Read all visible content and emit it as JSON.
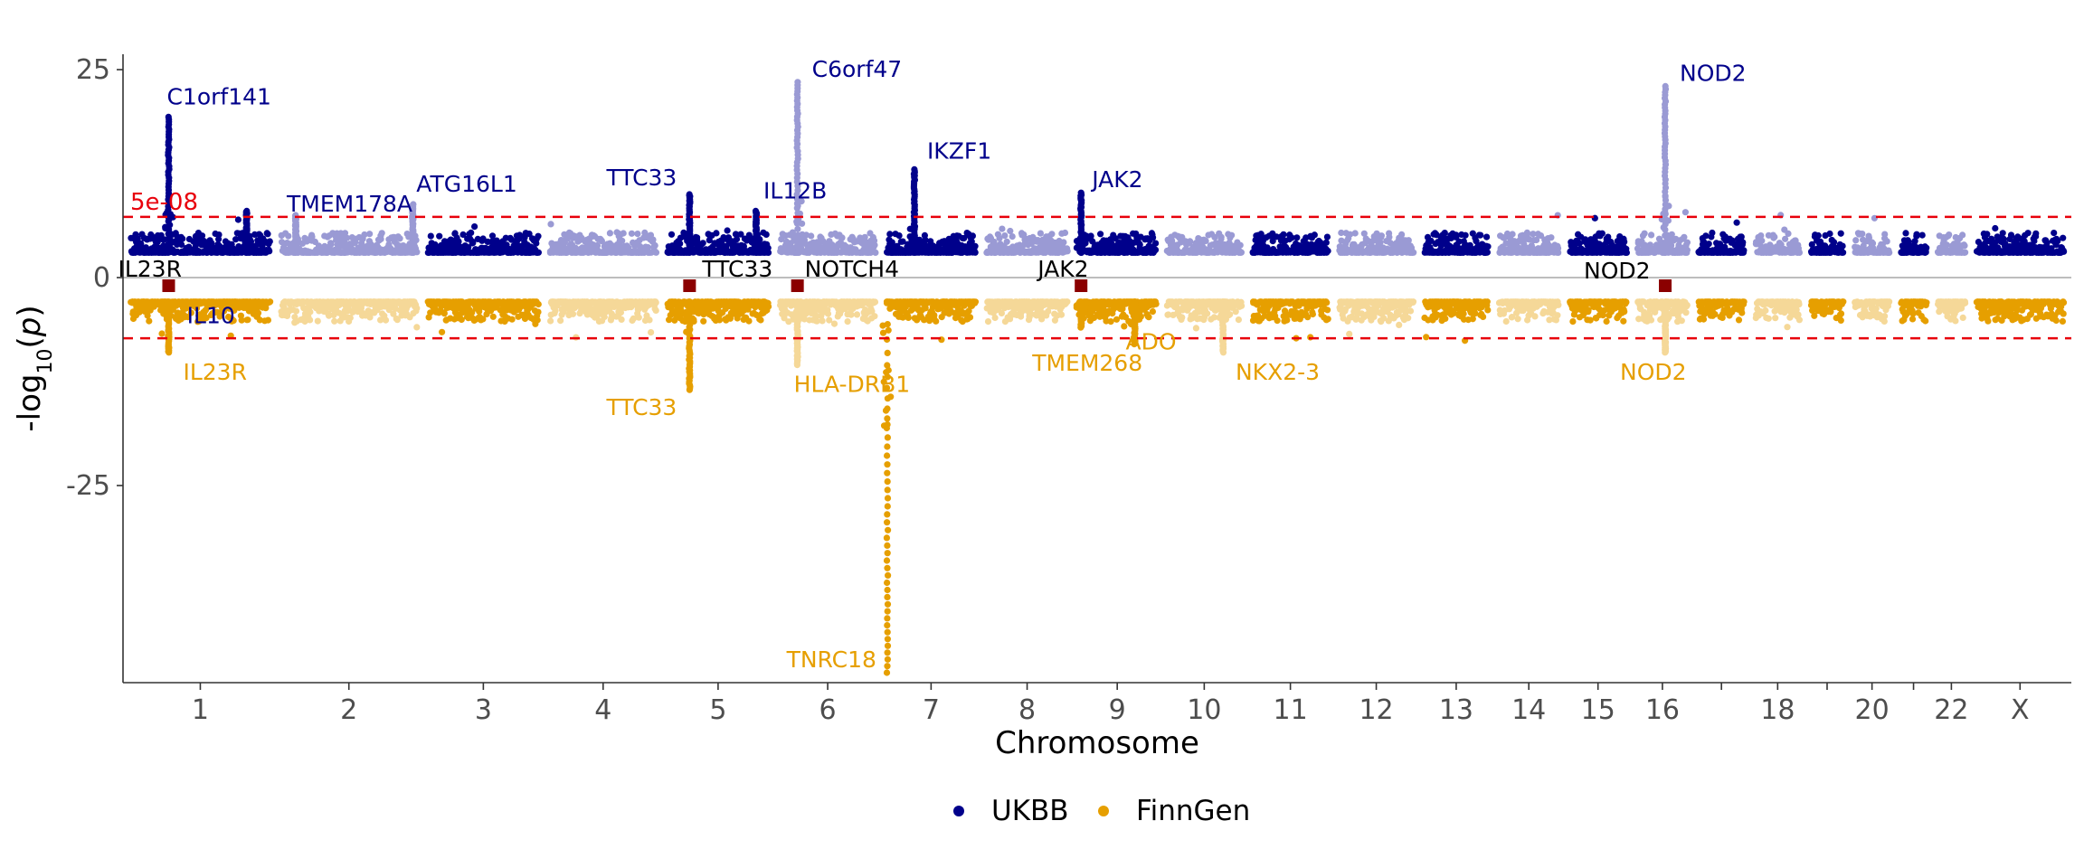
{
  "chart_data": {
    "type": "scatter",
    "subtype": "miami",
    "xlabel": "Chromosome",
    "ylabel_main": "-log",
    "ylabel_sub": "10",
    "ylabel_var": "p",
    "ylim": [
      -48,
      26
    ],
    "y_ticks": [
      {
        "value": 25,
        "label": "25"
      },
      {
        "value": 0,
        "label": "0"
      },
      {
        "value": -25,
        "label": "-25"
      }
    ],
    "chromosomes": [
      {
        "chr": 1,
        "label": "1",
        "size": 248
      },
      {
        "chr": 2,
        "label": "2",
        "size": 242
      },
      {
        "chr": 3,
        "label": "3",
        "size": 198
      },
      {
        "chr": 4,
        "label": "4",
        "size": 190
      },
      {
        "chr": 5,
        "label": "5",
        "size": 181
      },
      {
        "chr": 6,
        "label": "6",
        "size": 171
      },
      {
        "chr": 7,
        "label": "7",
        "size": 159
      },
      {
        "chr": 8,
        "label": "8",
        "size": 145
      },
      {
        "chr": 9,
        "label": "9",
        "size": 138
      },
      {
        "chr": 10,
        "label": "10",
        "size": 134
      },
      {
        "chr": 11,
        "label": "11",
        "size": 135
      },
      {
        "chr": 12,
        "label": "12",
        "size": 133
      },
      {
        "chr": 13,
        "label": "13",
        "size": 114
      },
      {
        "chr": 14,
        "label": "14",
        "size": 107
      },
      {
        "chr": 15,
        "label": "15",
        "size": 102
      },
      {
        "chr": 16,
        "label": "16",
        "size": 90
      },
      {
        "chr": 17,
        "label": "",
        "size": 83
      },
      {
        "chr": 18,
        "label": "18",
        "size": 80
      },
      {
        "chr": 19,
        "label": "",
        "size": 59
      },
      {
        "chr": 20,
        "label": "20",
        "size": 64
      },
      {
        "chr": 21,
        "label": "",
        "size": 47
      },
      {
        "chr": 22,
        "label": "22",
        "size": 51
      },
      {
        "chr": 23,
        "label": "X",
        "size": 156
      }
    ],
    "threshold": {
      "label": "5e-08",
      "value": 7.3,
      "color": "#e8000b"
    },
    "series": [
      {
        "name": "UKBB",
        "direction": "up",
        "colors": [
          "#00008b",
          "#9a9ad4"
        ],
        "peaks": [
          {
            "chr": 1,
            "pos": 68,
            "peak": 19.3,
            "label": "C1orf141"
          },
          {
            "chr": 1,
            "pos": 206,
            "peak": 8.0,
            "label": "IL10"
          },
          {
            "chr": 2,
            "pos": 27,
            "peak": 7.5,
            "label": "TMEM178A"
          },
          {
            "chr": 2,
            "pos": 234,
            "peak": 8.8,
            "label": "ATG16L1"
          },
          {
            "chr": 5,
            "pos": 40,
            "peak": 10.0,
            "label": "TTC33"
          },
          {
            "chr": 5,
            "pos": 158,
            "peak": 8.0,
            "label": "IL12B"
          },
          {
            "chr": 6,
            "pos": 32,
            "peak": 23.5,
            "label": "C6orf47"
          },
          {
            "chr": 7,
            "pos": 50,
            "peak": 13.0,
            "label": "IKZF1"
          },
          {
            "chr": 9,
            "pos": 5,
            "peak": 10.2,
            "label": "JAK2"
          },
          {
            "chr": 16,
            "pos": 50,
            "peak": 23.0,
            "label": "NOD2"
          }
        ]
      },
      {
        "name": "FinnGen",
        "direction": "down",
        "colors": [
          "#e69f00",
          "#f5d898"
        ],
        "peaks": [
          {
            "chr": 1,
            "pos": 68,
            "peak": 9.0,
            "label": "IL23R"
          },
          {
            "chr": 5,
            "pos": 40,
            "peak": 13.5,
            "label": "TTC33"
          },
          {
            "chr": 6,
            "pos": 32,
            "peak": 10.5,
            "label": "HLA-DRB1"
          },
          {
            "chr": 7,
            "pos": 2,
            "peak": 47.5,
            "label": "TNRC18"
          },
          {
            "chr": 9,
            "pos": 100,
            "peak": 8.0,
            "label": "ADO"
          },
          {
            "chr": 9,
            "pos": 5,
            "peak": 6.0,
            "label": "TMEM268"
          },
          {
            "chr": 10,
            "pos": 100,
            "peak": 9.0,
            "label": "NKX2-3"
          },
          {
            "chr": 16,
            "pos": 50,
            "peak": 9.0,
            "label": "NOD2"
          }
        ]
      }
    ],
    "shared_loci": {
      "color": "#8b0000",
      "items": [
        {
          "chr": 1,
          "pos": 68,
          "label": "IL23R"
        },
        {
          "chr": 5,
          "pos": 40,
          "label": "TTC33"
        },
        {
          "chr": 6,
          "pos": 32,
          "label": "NOTCH4"
        },
        {
          "chr": 9,
          "pos": 5,
          "label": "JAK2"
        },
        {
          "chr": 16,
          "pos": 50,
          "label": "NOD2"
        }
      ]
    },
    "legend": {
      "position": "bottom",
      "items": [
        {
          "label": "UKBB",
          "color": "#00008b"
        },
        {
          "label": "FinnGen",
          "color": "#e69f00"
        }
      ]
    },
    "grid": false
  }
}
